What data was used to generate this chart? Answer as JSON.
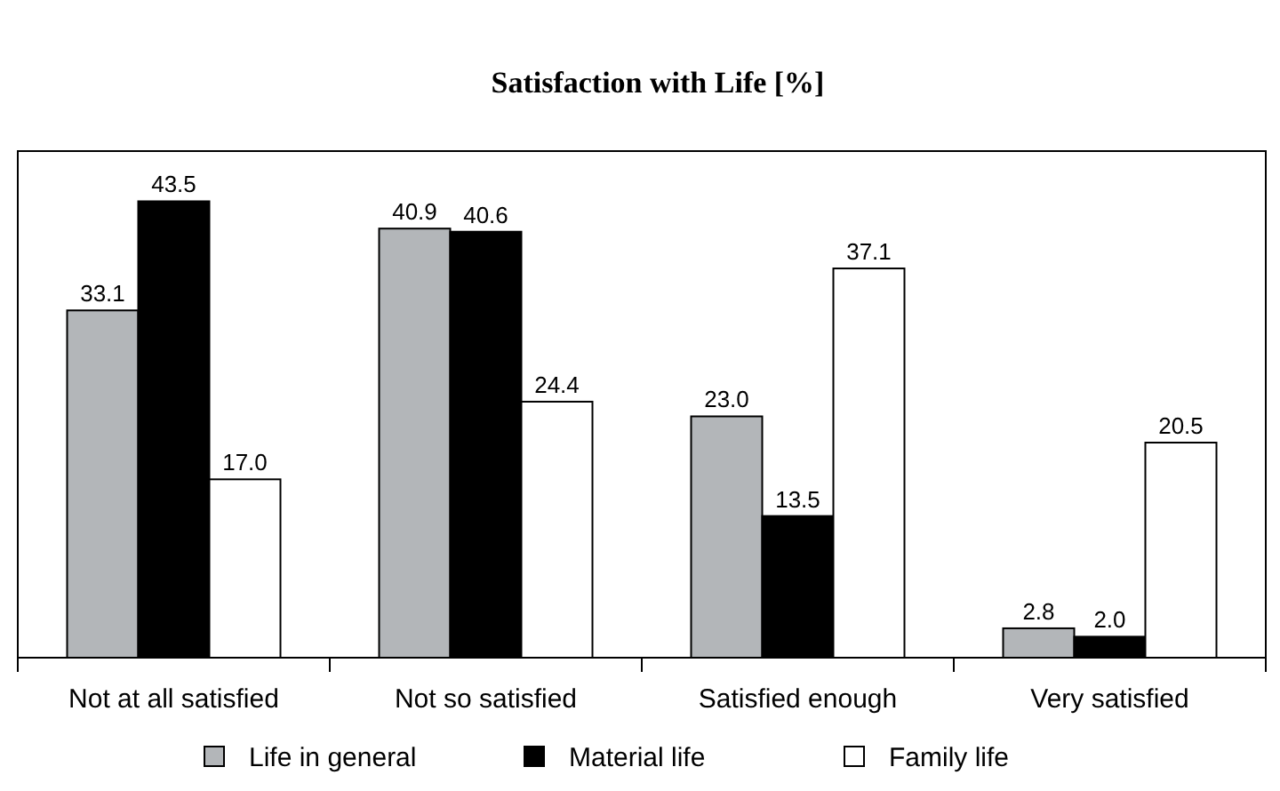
{
  "chart_data": {
    "type": "bar",
    "title": "Satisfaction with Life [%]",
    "categories": [
      "Not at all satisfied",
      "Not so satisfied",
      "Satisfied enough",
      "Very satisfied"
    ],
    "series": [
      {
        "name": "Life in general",
        "color": "#b3b6b9",
        "values": [
          33.1,
          40.9,
          23.0,
          2.8
        ],
        "value_labels": [
          "33.1",
          "40.9",
          "23.0",
          "2.8"
        ]
      },
      {
        "name": "Material life",
        "color": "#000000",
        "values": [
          43.5,
          40.6,
          13.5,
          2.0
        ],
        "value_labels": [
          "43.5",
          "40.6",
          "13.5",
          "2.0"
        ]
      },
      {
        "name": "Family life",
        "color": "#ffffff",
        "values": [
          17.0,
          24.4,
          37.1,
          20.5
        ],
        "value_labels": [
          "17.0",
          "24.4",
          "37.1",
          "20.5"
        ]
      }
    ],
    "legend": "bottom"
  }
}
